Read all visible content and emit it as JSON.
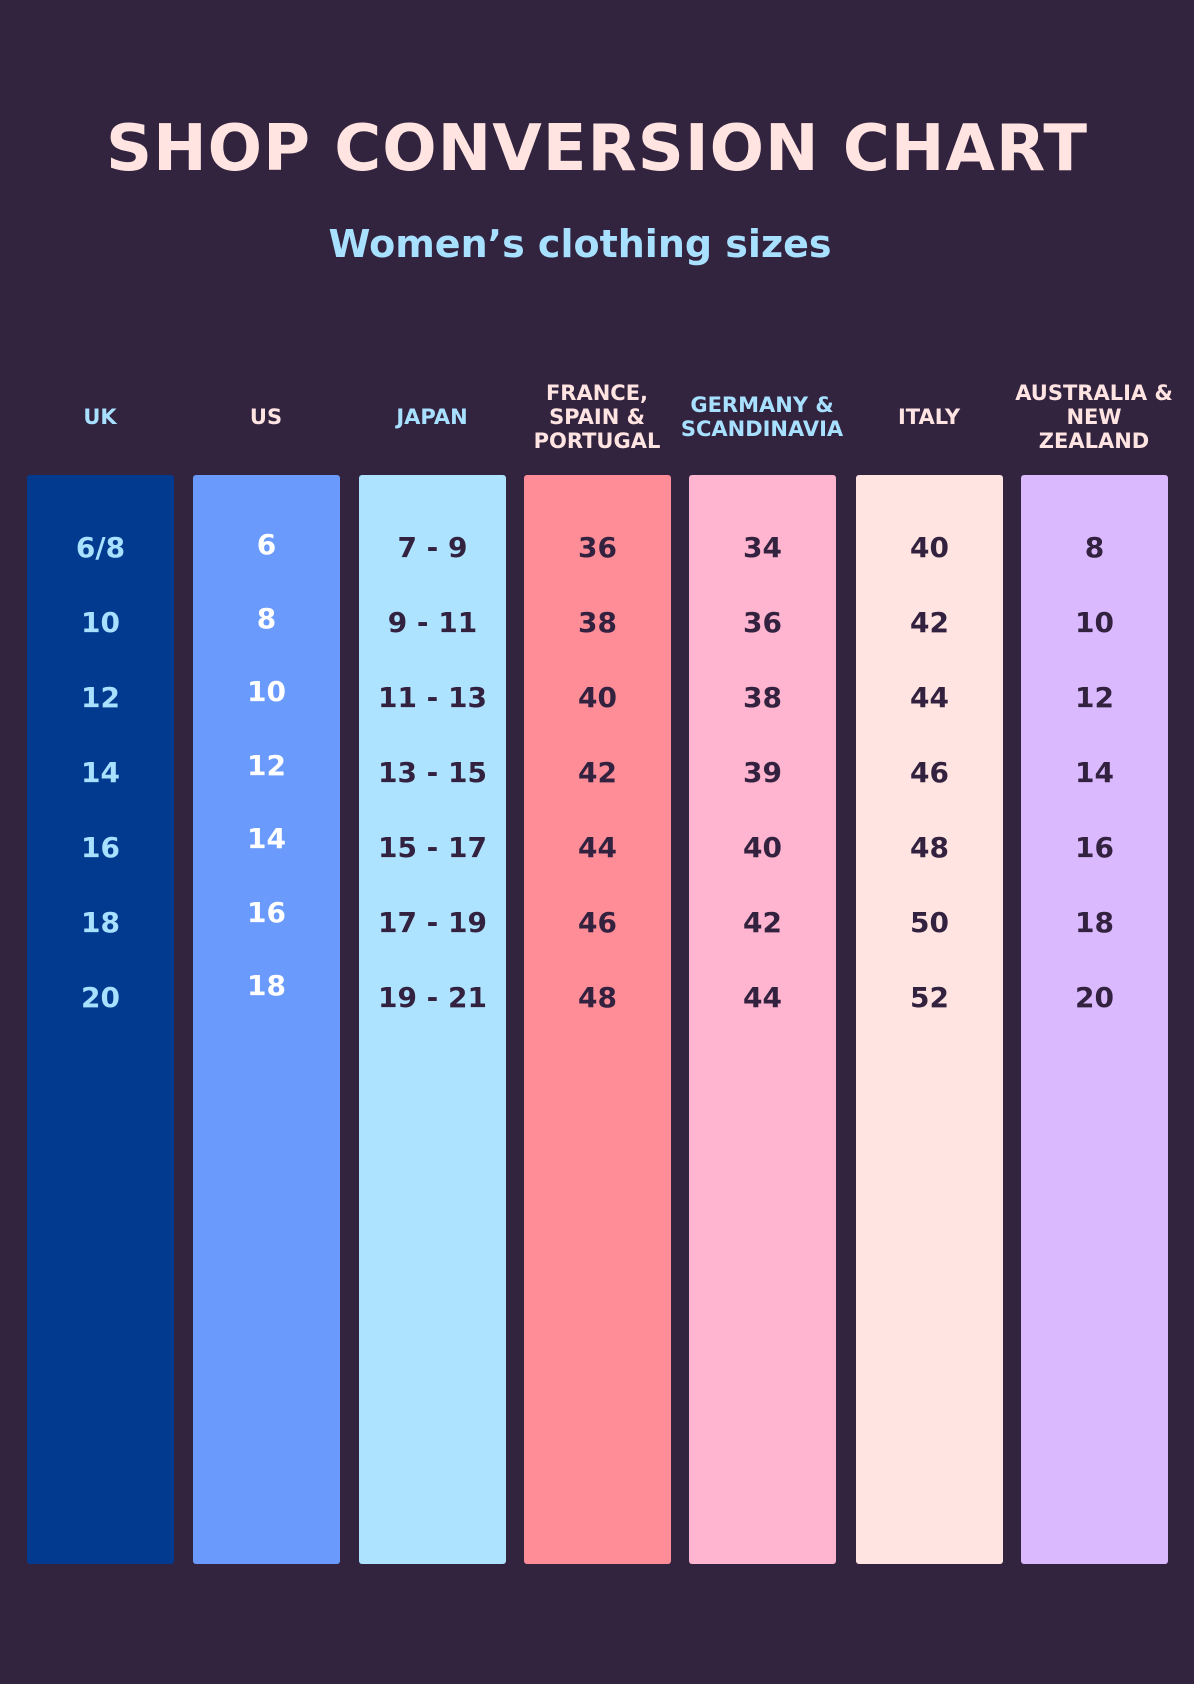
{
  "title": "SHOP CONVERSION CHART",
  "subtitle": "Women’s clothing sizes",
  "columns": [
    {
      "header": "UK",
      "header_color": "#a8e0ff",
      "bg": "#023a8f",
      "text_color": "#a8e0ff",
      "values": [
        "6/8",
        "10",
        "12",
        "14",
        "16",
        "18",
        "20"
      ]
    },
    {
      "header": "US",
      "header_color": "#ffe4e1",
      "bg": "#6a9afc",
      "text_color": "#ffffff",
      "values": [
        "6",
        "8",
        "10",
        "12",
        "14",
        "16",
        "18"
      ]
    },
    {
      "header": "JAPAN",
      "header_color": "#a8e0ff",
      "bg": "#ade3ff",
      "text_color": "#33223f",
      "values": [
        "7 - 9",
        "9 - 11",
        "11 - 13",
        "13 - 15",
        "15 - 17",
        "17 - 19",
        "19 - 21"
      ]
    },
    {
      "header": "FRANCE, SPAIN & PORTUGAL",
      "header_color": "#ffe4e1",
      "bg": "#ff8d98",
      "text_color": "#33223f",
      "values": [
        "36",
        "38",
        "40",
        "42",
        "44",
        "46",
        "48"
      ]
    },
    {
      "header": "GERMANY & SCANDINAVIA",
      "header_color": "#a8e0ff",
      "bg": "#ffb4cf",
      "text_color": "#33223f",
      "values": [
        "34",
        "36",
        "38",
        "39",
        "40",
        "42",
        "44"
      ]
    },
    {
      "header": "ITALY",
      "header_color": "#ffe4e1",
      "bg": "#ffe4e1",
      "text_color": "#33223f",
      "values": [
        "40",
        "42",
        "44",
        "46",
        "48",
        "50",
        "52"
      ]
    },
    {
      "header": "AUSTRALIA & NEW ZEALAND",
      "header_color": "#ffe4e1",
      "bg": "#dab9ff",
      "text_color": "#33223f",
      "values": [
        "8",
        "10",
        "12",
        "14",
        "16",
        "18",
        "20"
      ]
    }
  ]
}
